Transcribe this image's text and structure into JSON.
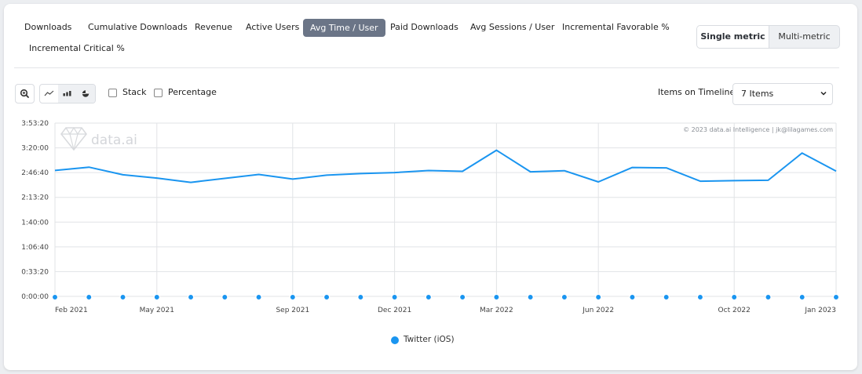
{
  "tabs": [
    {
      "label": "Downloads",
      "active": false
    },
    {
      "label": "Cumulative Downloads",
      "active": false
    },
    {
      "label": "Revenue",
      "active": false
    },
    {
      "label": "Active Users",
      "active": false
    },
    {
      "label": "Avg Time / User",
      "active": true
    },
    {
      "label": "Paid Downloads",
      "active": false
    },
    {
      "label": "Avg Sessions / User",
      "active": false
    },
    {
      "label": "Incremental Favorable %",
      "active": false
    },
    {
      "label": "Incremental Critical %",
      "active": false
    }
  ],
  "metric_mode": {
    "single_label": "Single metric",
    "multi_label": "Multi-metric",
    "selected": "single"
  },
  "toolbar": {
    "zoom_icon": "zoom-in-icon",
    "chart_type_icons": [
      "line-chart-icon",
      "bar-chart-icon",
      "pie-chart-icon"
    ],
    "selected_chart_type": "bar-chart-icon",
    "stack_label": "Stack",
    "stack_checked": false,
    "percentage_label": "Percentage",
    "percentage_checked": false,
    "items_on_timeline_label": "Items on Timeline:",
    "items_on_timeline_value": "7 Items"
  },
  "watermark": {
    "logo_text": "data.ai",
    "copyright": "© 2023 data.ai Intelligence | jk@lilagames.com"
  },
  "colors": {
    "series": "#1a95f0",
    "active_tab": "#6b7587",
    "grid": "#e1e3e6"
  },
  "chart_data": {
    "type": "line",
    "title": "",
    "xlabel": "",
    "ylabel": "",
    "x": [
      "2021-02",
      "2021-03",
      "2021-04",
      "2021-05",
      "2021-06",
      "2021-07",
      "2021-08",
      "2021-09",
      "2021-10",
      "2021-11",
      "2021-12",
      "2022-01",
      "2022-02",
      "2022-03",
      "2022-04",
      "2022-05",
      "2022-06",
      "2022-07",
      "2022-08",
      "2022-09",
      "2022-10",
      "2022-11",
      "2022-12",
      "2023-01"
    ],
    "x_tick_labels": [
      {
        "x": "2021-02",
        "label": "Feb 2021"
      },
      {
        "x": "2021-05",
        "label": "May 2021"
      },
      {
        "x": "2021-09",
        "label": "Sep 2021"
      },
      {
        "x": "2021-12",
        "label": "Dec 2021"
      },
      {
        "x": "2022-03",
        "label": "Mar 2022"
      },
      {
        "x": "2022-06",
        "label": "Jun 2022"
      },
      {
        "x": "2022-10",
        "label": "Oct 2022"
      },
      {
        "x": "2023-01",
        "label": "Jan 2023"
      }
    ],
    "y_ticks": [
      "0:00:00",
      "0:33:20",
      "1:06:40",
      "1:40:00",
      "2:13:20",
      "2:46:40",
      "3:20:00",
      "3:53:20"
    ],
    "ylim": [
      "0:00:00",
      "3:53:20"
    ],
    "series": [
      {
        "name": "Twitter (iOS)",
        "values": [
          "2:49:36",
          "2:53:57",
          "2:43:45",
          "2:39:21",
          "2:33:30",
          "2:38:53",
          "2:44:11",
          "2:37:59",
          "2:43:16",
          "2:45:21",
          "2:46:43",
          "2:49:26",
          "2:48:26",
          "3:16:49",
          "2:47:48",
          "2:49:17",
          "2:34:06",
          "2:53:37",
          "2:53:05",
          "2:35:09",
          "2:35:53",
          "2:36:25",
          "3:13:01",
          "2:48:42"
        ]
      }
    ],
    "grid": true,
    "legend_position": "bottom"
  }
}
